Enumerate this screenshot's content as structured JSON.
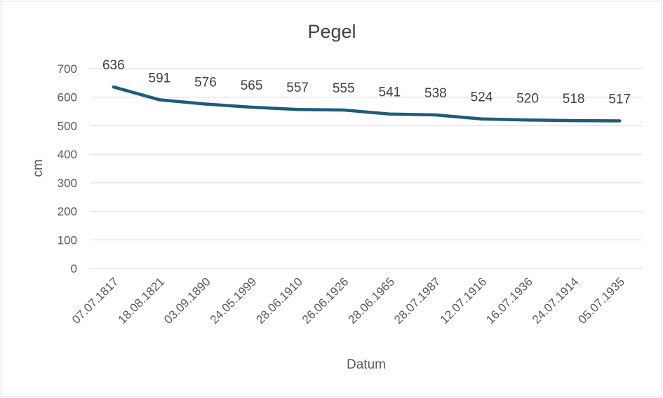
{
  "chart_data": {
    "type": "line",
    "title": "Pegel",
    "xlabel": "Datum",
    "ylabel": "cm",
    "categories": [
      "07.07.1817",
      "18.08.1821",
      "03.09.1890",
      "24.05.1999",
      "28.06.1910",
      "26.06.1926",
      "28.06.1965",
      "28.07.1987",
      "12.07.1916",
      "16.07.1936",
      "24.07.1914",
      "05.07.1935"
    ],
    "series": [
      {
        "values": [
          636,
          591,
          576,
          565,
          557,
          555,
          541,
          538,
          524,
          520,
          518,
          517
        ],
        "color": "#1f5b7a"
      }
    ],
    "ylim": [
      0,
      700
    ],
    "yticks": [
      0,
      100,
      200,
      300,
      400,
      500,
      600,
      700
    ],
    "grid": true,
    "data_labels": true
  }
}
